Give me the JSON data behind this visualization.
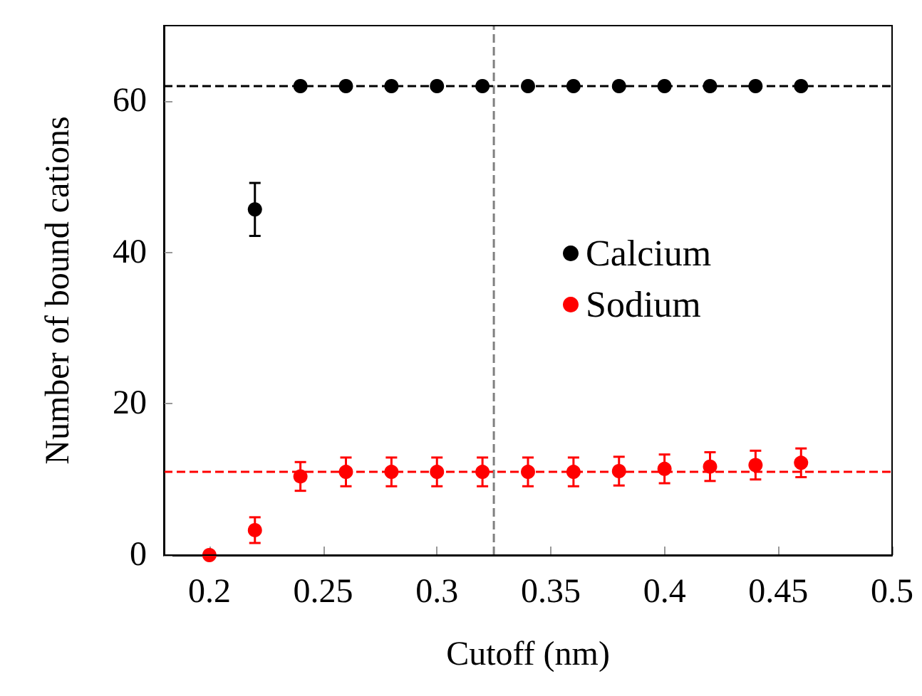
{
  "chart_data": {
    "type": "scatter",
    "xlabel": "Cutoff (nm)",
    "ylabel": "Number of bound cations",
    "xlim": [
      0.18,
      0.5
    ],
    "xticks": [
      0.2,
      0.25,
      0.3,
      0.35,
      0.4,
      0.45,
      0.5
    ],
    "ylim": [
      0,
      70
    ],
    "yticks": [
      0,
      20,
      40,
      60
    ],
    "series": [
      {
        "name": "Calcium",
        "color": "#000000",
        "x": [
          0.22,
          0.24,
          0.26,
          0.28,
          0.3,
          0.32,
          0.34,
          0.36,
          0.38,
          0.4,
          0.42,
          0.44,
          0.46
        ],
        "values": [
          45.7,
          62,
          62,
          62,
          62,
          62,
          62,
          62,
          62,
          62,
          62,
          62,
          62
        ],
        "errors": [
          3.5,
          null,
          null,
          null,
          null,
          null,
          null,
          null,
          null,
          null,
          null,
          null,
          null
        ]
      },
      {
        "name": "Sodium",
        "color": "#ff0000",
        "x": [
          0.2,
          0.22,
          0.24,
          0.26,
          0.28,
          0.3,
          0.32,
          0.34,
          0.36,
          0.38,
          0.4,
          0.42,
          0.44,
          0.46
        ],
        "values": [
          0,
          3.3,
          10.4,
          11,
          11,
          11,
          11,
          11,
          11,
          11.1,
          11.4,
          11.7,
          11.9,
          12.2
        ],
        "errors": [
          null,
          1.7,
          1.9,
          1.9,
          1.9,
          1.9,
          1.9,
          1.9,
          1.9,
          1.9,
          1.9,
          1.9,
          1.9,
          1.9
        ]
      }
    ],
    "ref_lines": [
      {
        "axis": "x",
        "value": 0.325,
        "color": "#808080",
        "line_style": "dashed"
      },
      {
        "axis": "y",
        "value": 62,
        "color": "#000000",
        "line_style": "dashed"
      },
      {
        "axis": "y",
        "value": 11,
        "color": "#ff0000",
        "line_style": "dashed"
      }
    ],
    "legend": "right",
    "marker": "circle",
    "grid": false
  }
}
